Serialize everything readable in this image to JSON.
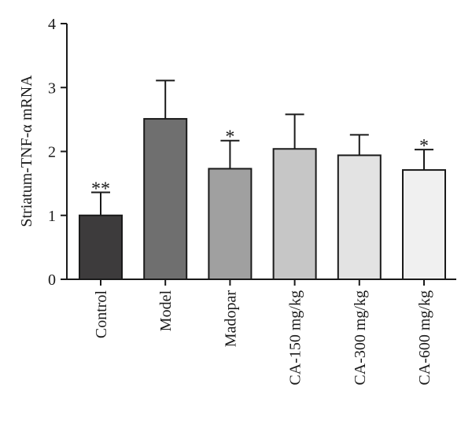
{
  "chart_data": {
    "type": "bar",
    "title": "",
    "xlabel": "",
    "ylabel": "Striatum-TNF-α mRNA",
    "ylim": [
      0,
      4
    ],
    "yticks": [
      0,
      1,
      2,
      3,
      4
    ],
    "grid": false,
    "legend": "none",
    "categories": [
      "Control",
      "Model",
      "Madopar",
      "CA-150 mg/kg",
      "CA-300 mg/kg",
      "CA-600 mg/kg"
    ],
    "values": [
      1.0,
      2.51,
      1.73,
      2.04,
      1.94,
      1.71
    ],
    "errors": [
      0.36,
      0.6,
      0.44,
      0.54,
      0.32,
      0.32
    ],
    "significance": [
      "**",
      "",
      "*",
      "",
      "",
      "*"
    ],
    "colors": [
      "#3d3b3c",
      "#6f6f6f",
      "#a0a0a0",
      "#c6c6c6",
      "#e3e3e3",
      "#f0f0f0"
    ]
  }
}
